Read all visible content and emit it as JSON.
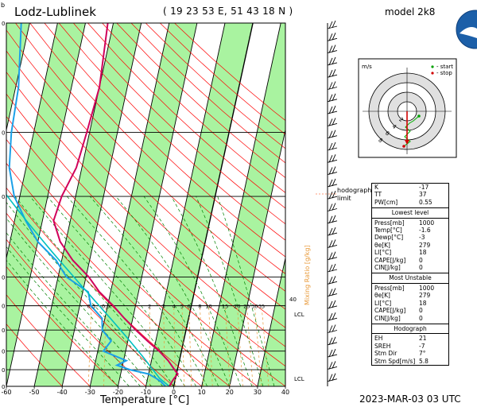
{
  "header": {
    "station": "Lodz-Lublinek",
    "coords": "( 19 23 53  E, 51 43 18  N )",
    "model": "model 2k8",
    "date": "2023-MAR-03    03 UTC",
    "corner_mark": "b"
  },
  "chart_data": {
    "type": "skew-t",
    "xlabel": "Temperature [°C]",
    "x_ticks": [
      "-60",
      "-50",
      "-40",
      "-30",
      "-20",
      "-10",
      "0",
      "10",
      "20",
      "30",
      "40"
    ],
    "xlim": [
      -60,
      40
    ],
    "pressure_levels": [
      {
        "p": 100,
        "label": "0"
      },
      {
        "p": 200,
        "label": "0"
      },
      {
        "p": 300,
        "label": "0"
      },
      {
        "p": 500,
        "label": "0"
      },
      {
        "p": 600,
        "label": "0"
      },
      {
        "p": 700,
        "label": "0"
      },
      {
        "p": 800,
        "label": "0"
      },
      {
        "p": 900,
        "label": "0"
      },
      {
        "p": 1000,
        "label": "0"
      }
    ],
    "mixing_ratio_label": "Mixing Ratio [g/kg]",
    "mixing_ratio_ticks": [
      "0.3",
      "0.5",
      "2",
      "3",
      "4",
      "5",
      "6",
      "8",
      "10",
      "15",
      "20",
      "25",
      "30",
      "35"
    ],
    "side_labels": {
      "lcl_upper": "LCL",
      "lcl_lower": "LCL",
      "hodo_limit": "hodograph\nlimit",
      "level_40": "40"
    },
    "temperature_profile": [
      {
        "p": 1000,
        "t": -1.6
      },
      {
        "p": 970,
        "t": -1
      },
      {
        "p": 950,
        "t": -0.5
      },
      {
        "p": 925,
        "t": 0.5
      },
      {
        "p": 900,
        "t": -1
      },
      {
        "p": 850,
        "t": -4
      },
      {
        "p": 800,
        "t": -8
      },
      {
        "p": 750,
        "t": -13
      },
      {
        "p": 700,
        "t": -18
      },
      {
        "p": 650,
        "t": -23
      },
      {
        "p": 600,
        "t": -28
      },
      {
        "p": 550,
        "t": -34
      },
      {
        "p": 500,
        "t": -39
      },
      {
        "p": 450,
        "t": -46
      },
      {
        "p": 400,
        "t": -52
      },
      {
        "p": 350,
        "t": -56
      },
      {
        "p": 300,
        "t": -55
      },
      {
        "p": 250,
        "t": -52
      },
      {
        "p": 200,
        "t": -51
      },
      {
        "p": 150,
        "t": -50
      },
      {
        "p": 100,
        "t": -52
      }
    ],
    "dewpoint_profile": [
      {
        "p": 1000,
        "t": -3
      },
      {
        "p": 970,
        "t": -5
      },
      {
        "p": 950,
        "t": -7
      },
      {
        "p": 925,
        "t": -10
      },
      {
        "p": 900,
        "t": -17
      },
      {
        "p": 875,
        "t": -22
      },
      {
        "p": 850,
        "t": -19
      },
      {
        "p": 800,
        "t": -28
      },
      {
        "p": 750,
        "t": -26
      },
      {
        "p": 700,
        "t": -30
      },
      {
        "p": 650,
        "t": -31
      },
      {
        "p": 600,
        "t": -36
      },
      {
        "p": 550,
        "t": -38
      },
      {
        "p": 500,
        "t": -47
      },
      {
        "p": 450,
        "t": -52
      },
      {
        "p": 400,
        "t": -60
      },
      {
        "p": 350,
        "t": -66
      },
      {
        "p": 300,
        "t": -72
      },
      {
        "p": 250,
        "t": -76
      },
      {
        "p": 200,
        "t": -78
      },
      {
        "p": 150,
        "t": -79
      },
      {
        "p": 100,
        "t": -83
      }
    ]
  },
  "hodograph": {
    "unit": "m/s",
    "legend_start": "- start",
    "legend_stop": "- stop",
    "ring_labels": [
      "2",
      "4",
      "6",
      "8"
    ]
  },
  "indices": {
    "top": [
      {
        "k": "K",
        "v": "-17"
      },
      {
        "k": "TT",
        "v": "37"
      },
      {
        "k": "PW[cm]",
        "v": "0.55"
      }
    ],
    "lowest_title": "Lowest level",
    "lowest": [
      {
        "k": "Press[mb]",
        "v": "1000"
      },
      {
        "k": "Temp[°C]",
        "v": "-1.6"
      },
      {
        "k": "Dewp[°C]",
        "v": "-3"
      },
      {
        "k": "θe[K]",
        "v": "279"
      },
      {
        "k": "LI[°C]",
        "v": "18"
      },
      {
        "k": "CAPE[J/kg]",
        "v": "0"
      },
      {
        "k": "CIN[J/kg]",
        "v": "0"
      }
    ],
    "unstable_title": "Most Unstable",
    "unstable": [
      {
        "k": "Press[mb]",
        "v": "1000"
      },
      {
        "k": "θe[K]",
        "v": "279"
      },
      {
        "k": "LI[°C]",
        "v": "18"
      },
      {
        "k": "CAPE[J/kg]",
        "v": "0"
      },
      {
        "k": "CIN[J/kg]",
        "v": "0"
      }
    ],
    "hodo_title": "Hodograph",
    "hodo": [
      {
        "k": "EH",
        "v": "21"
      },
      {
        "k": "SREH",
        "v": "-7"
      },
      {
        "k": "Stm Dir",
        "v": "7°"
      },
      {
        "k": "Stm Spd[m/s]",
        "v": "5.8"
      }
    ]
  },
  "colors": {
    "dry_band": "#a9f3a0",
    "isotherm": "#000000",
    "dry_adiabat": "#ff0000",
    "moist_adiabat": "#008000",
    "mixing_ratio": "#e89a3a",
    "temperature": "#d0005a",
    "dewpoint": "#1aa0e8",
    "parcel": "#00c0c0"
  }
}
